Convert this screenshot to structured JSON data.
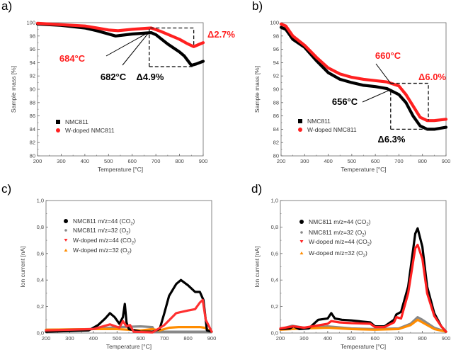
{
  "chart_data": [
    {
      "panel_label": "a)",
      "type": "line",
      "xlabel": "Temperature [°C]",
      "ylabel": "Sample mass [%]",
      "xlim": [
        200,
        900
      ],
      "ylim": [
        80,
        100
      ],
      "xticks": [
        "200",
        "300",
        "400",
        "500",
        "600",
        "700",
        "800",
        "900"
      ],
      "yticks": [
        "80",
        "82",
        "84",
        "86",
        "88",
        "90",
        "92",
        "94",
        "96",
        "98",
        "100"
      ],
      "grid": false,
      "legend_placement": "lower-left",
      "series": [
        {
          "name": "NMC811",
          "color": "#000000",
          "marker": "square",
          "x": [
            200,
            300,
            400,
            450,
            500,
            530,
            600,
            680,
            700,
            750,
            800,
            820,
            850,
            870,
            900
          ],
          "y": [
            99.8,
            99.6,
            99.2,
            98.8,
            98.3,
            98.0,
            98.3,
            98.5,
            98.2,
            96.8,
            95.6,
            95.0,
            93.6,
            93.8,
            94.2
          ]
        },
        {
          "name": "W-doped NMC811",
          "color": "#ff2020",
          "marker": "circle",
          "x": [
            200,
            300,
            400,
            450,
            500,
            540,
            600,
            680,
            720,
            800,
            830,
            860,
            880,
            900
          ],
          "y": [
            99.9,
            99.7,
            99.5,
            99.2,
            98.9,
            98.8,
            99.0,
            99.2,
            98.7,
            97.5,
            96.9,
            96.4,
            96.7,
            97.0
          ]
        }
      ],
      "annotations": [
        {
          "text": "684°C",
          "color": "#ff2020"
        },
        {
          "text": "682°C",
          "color": "#000000"
        },
        {
          "text": "Δ4.9%",
          "color": "#000000"
        },
        {
          "text": "Δ2.7%",
          "color": "#ff2020"
        }
      ]
    },
    {
      "panel_label": "b)",
      "type": "line",
      "xlabel": "Temperature [°C]",
      "ylabel": "Sample mass [%]",
      "xlim": [
        200,
        900
      ],
      "ylim": [
        80,
        100
      ],
      "xticks": [
        "200",
        "300",
        "400",
        "500",
        "600",
        "700",
        "800",
        "900"
      ],
      "yticks": [
        "80",
        "82",
        "84",
        "86",
        "88",
        "90",
        "92",
        "94",
        "96",
        "98",
        "100"
      ],
      "grid": false,
      "legend_placement": "lower-left",
      "series": [
        {
          "name": "NMC811",
          "color": "#000000",
          "marker": "square",
          "x": [
            200,
            220,
            250,
            300,
            350,
            400,
            450,
            500,
            550,
            600,
            650,
            700,
            730,
            760,
            790,
            820,
            850,
            900
          ],
          "y": [
            99.3,
            99.0,
            97.5,
            96.3,
            94.3,
            92.5,
            91.5,
            91.0,
            90.6,
            90.4,
            90.1,
            89.2,
            88.0,
            86.0,
            84.5,
            84.0,
            84.0,
            84.3
          ]
        },
        {
          "name": "W-doped NMC811",
          "color": "#ff2020",
          "marker": "circle",
          "x": [
            200,
            220,
            250,
            300,
            350,
            400,
            450,
            500,
            550,
            600,
            650,
            700,
            730,
            760,
            790,
            820,
            850,
            900
          ],
          "y": [
            99.8,
            99.5,
            98.0,
            96.6,
            94.8,
            93.2,
            92.3,
            91.8,
            91.5,
            91.3,
            91.1,
            90.5,
            89.2,
            87.5,
            85.8,
            85.3,
            85.3,
            85.5
          ]
        }
      ],
      "annotations": [
        {
          "text": "660°C",
          "color": "#ff2020"
        },
        {
          "text": "Δ6.0%",
          "color": "#ff2020"
        },
        {
          "text": "656°C",
          "color": "#000000"
        },
        {
          "text": "Δ6.3%",
          "color": "#000000"
        }
      ]
    },
    {
      "panel_label": "c)",
      "type": "line",
      "xlabel": "Temperature [°C]",
      "ylabel": "Ion current [nA]",
      "xlim": [
        200,
        900
      ],
      "ylim": [
        0,
        1.0
      ],
      "xticks": [
        "200",
        "300",
        "400",
        "500",
        "600",
        "700",
        "800",
        "900"
      ],
      "yticks": [
        "0,0",
        "0,2",
        "0,4",
        "0,6",
        "0,8",
        "1,0"
      ],
      "grid": false,
      "legend_placement": "top-left",
      "series": [
        {
          "name": "NMC811 m/z=44 (CO",
          "sub": "2",
          "color": "#000000",
          "marker": "circle",
          "x": [
            200,
            300,
            380,
            420,
            450,
            470,
            490,
            510,
            525,
            533,
            540,
            550,
            600,
            650,
            680,
            700,
            720,
            750,
            770,
            800,
            830,
            850,
            865,
            880,
            900
          ],
          "y": [
            0.01,
            0.015,
            0.02,
            0.06,
            0.11,
            0.15,
            0.12,
            0.07,
            0.12,
            0.22,
            0.08,
            0.03,
            0.01,
            0.01,
            0.03,
            0.15,
            0.28,
            0.37,
            0.4,
            0.36,
            0.31,
            0.31,
            0.25,
            0.02,
            0.01
          ]
        },
        {
          "name": "NMC811 m/z=32 (O",
          "sub": "2",
          "color": "#888888",
          "marker": "star",
          "x": [
            200,
            400,
            500,
            600,
            650,
            660,
            900
          ],
          "y": [
            0.025,
            0.03,
            0.045,
            0.05,
            0.045,
            0.01,
            0.01
          ]
        },
        {
          "name": "W-doped m/z=44 (CO",
          "sub": "2",
          "color": "#ff3030",
          "marker": "triangle-down",
          "x": [
            200,
            400,
            470,
            510,
            525,
            540,
            555,
            570,
            650,
            700,
            750,
            800,
            830,
            850,
            862,
            875,
            900
          ],
          "y": [
            0.02,
            0.03,
            0.065,
            0.04,
            0.09,
            0.05,
            0.06,
            0.01,
            0.005,
            0.06,
            0.15,
            0.17,
            0.18,
            0.23,
            0.25,
            0.1,
            0.01
          ]
        },
        {
          "name": "W-doped m/z=32 (O",
          "sub": "2",
          "color": "#ff8c00",
          "marker": "triangle-up",
          "x": [
            200,
            400,
            500,
            600,
            650,
            680,
            720,
            760,
            850,
            870,
            900
          ],
          "y": [
            0.025,
            0.03,
            0.03,
            0.02,
            0.03,
            0.02,
            0.04,
            0.045,
            0.045,
            0.04,
            0.01
          ]
        }
      ]
    },
    {
      "panel_label": "d)",
      "type": "line",
      "xlabel": "Temperature [°C]",
      "ylabel": "Ion current [nA]",
      "xlim": [
        200,
        900
      ],
      "ylim": [
        0,
        1.0
      ],
      "xticks": [
        "200",
        "300",
        "400",
        "500",
        "600",
        "700",
        "800",
        "900"
      ],
      "yticks": [
        "0,0",
        "0,2",
        "0,4",
        "0,6",
        "0,8",
        "1,0"
      ],
      "grid": false,
      "legend_placement": "top-left",
      "series": [
        {
          "name": "NMC811 m/z=44 (CO",
          "sub": "2",
          "color": "#000000",
          "marker": "circle",
          "x": [
            200,
            240,
            255,
            280,
            320,
            360,
            400,
            415,
            430,
            460,
            500,
            580,
            600,
            640,
            680,
            690,
            710,
            740,
            770,
            780,
            800,
            820,
            850,
            880,
            900
          ],
          "y": [
            0.03,
            0.035,
            0.05,
            0.03,
            0.035,
            0.1,
            0.11,
            0.15,
            0.11,
            0.1,
            0.095,
            0.08,
            0.05,
            0.05,
            0.1,
            0.14,
            0.16,
            0.35,
            0.75,
            0.79,
            0.65,
            0.35,
            0.15,
            0.05,
            0.01
          ]
        },
        {
          "name": "NMC811 m/z=32 (O",
          "sub": "2",
          "color": "#888888",
          "marker": "star",
          "x": [
            200,
            250,
            300,
            400,
            500,
            600,
            700,
            750,
            780,
            800,
            850,
            900
          ],
          "y": [
            0.03,
            0.055,
            0.04,
            0.05,
            0.035,
            0.03,
            0.035,
            0.07,
            0.12,
            0.1,
            0.04,
            0.01
          ]
        },
        {
          "name": "W-doped m/z=44 (CO",
          "sub": "2",
          "color": "#ff2020",
          "marker": "triangle-down",
          "x": [
            200,
            255,
            300,
            400,
            415,
            450,
            500,
            580,
            600,
            640,
            680,
            690,
            710,
            740,
            770,
            780,
            800,
            820,
            850,
            880,
            900
          ],
          "y": [
            0.035,
            0.05,
            0.04,
            0.07,
            0.09,
            0.08,
            0.075,
            0.07,
            0.045,
            0.045,
            0.08,
            0.12,
            0.11,
            0.3,
            0.64,
            0.665,
            0.56,
            0.3,
            0.13,
            0.05,
            0.01
          ]
        },
        {
          "name": "W-doped m/z=32 (O",
          "sub": "2",
          "color": "#ff8c00",
          "marker": "triangle-up",
          "x": [
            200,
            300,
            400,
            500,
            600,
            700,
            750,
            780,
            800,
            850,
            900
          ],
          "y": [
            0.025,
            0.035,
            0.04,
            0.03,
            0.025,
            0.03,
            0.06,
            0.1,
            0.08,
            0.03,
            0.01
          ]
        }
      ]
    }
  ]
}
